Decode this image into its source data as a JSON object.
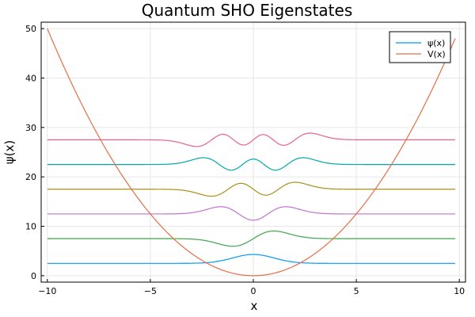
{
  "chart_data": {
    "type": "line",
    "title": "Quantum SHO Eigenstates",
    "xlabel": "x",
    "ylabel": "ψ(x)",
    "xlim": [
      -10.3,
      10.3
    ],
    "ylim": [
      -1.3,
      51.3
    ],
    "xticks": [
      -10,
      -5,
      0,
      5,
      10
    ],
    "xtick_labels": [
      "−10",
      "−5",
      "0",
      "5",
      "10"
    ],
    "yticks": [
      0,
      10,
      20,
      30,
      40,
      50
    ],
    "ytick_labels": [
      "0",
      "10",
      "20",
      "30",
      "40",
      "50"
    ],
    "grid": true,
    "legend_position": "top-right",
    "legend": [
      {
        "label": "ψ(x)",
        "color": "#009AFA"
      },
      {
        "label": "V(x)",
        "color": "#E36F47"
      }
    ],
    "potential": {
      "name": "V(x)",
      "formula": "V = 0.5 * x^2",
      "x_range": [
        -10,
        9.8
      ],
      "color": "#E36F47"
    },
    "series": [
      {
        "n": 0,
        "offset": 2.5,
        "color": "#009AFA"
      },
      {
        "n": 1,
        "offset": 7.5,
        "color": "#3EA44E"
      },
      {
        "n": 2,
        "offset": 12.5,
        "color": "#C371D2"
      },
      {
        "n": 3,
        "offset": 17.5,
        "color": "#AC8E18"
      },
      {
        "n": 4,
        "offset": 22.5,
        "color": "#00A9AD"
      },
      {
        "n": 5,
        "offset": 27.5,
        "color": "#ED5E93"
      }
    ],
    "wavefunction_x_range": [
      -10,
      9.8
    ],
    "wavefunction_scale": 2.4
  }
}
